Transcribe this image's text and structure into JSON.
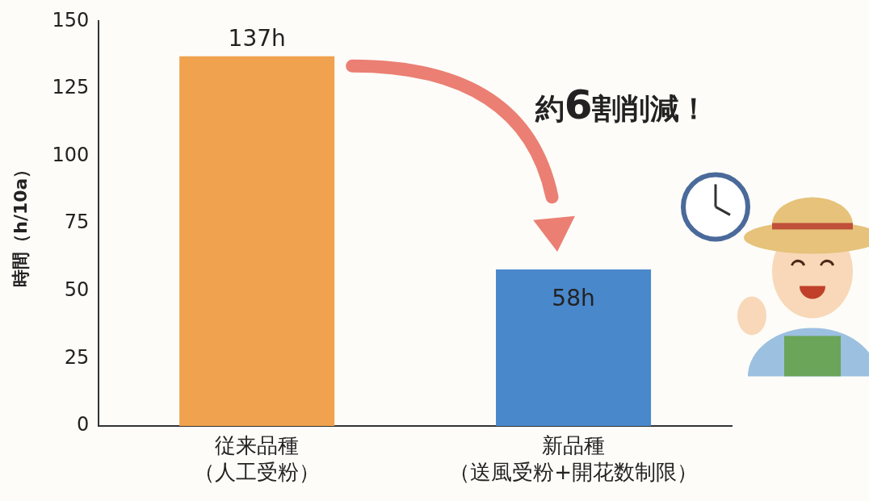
{
  "chart_data": {
    "type": "bar",
    "y_label": "時間（h/10a）",
    "categories": [
      [
        "従来品種",
        "（人工受粉）"
      ],
      [
        "新品種",
        "（送風受粉+開花数制限）"
      ]
    ],
    "values": [
      137,
      58
    ],
    "value_labels": [
      "137h",
      "58h"
    ],
    "colors": [
      "#f0a24e",
      "#4a88cc"
    ],
    "ylim": [
      0,
      150
    ],
    "yticks": [
      0,
      25,
      50,
      75,
      100,
      125,
      150
    ],
    "grid": false,
    "data_labels": true,
    "annotation": "約6割削減！"
  }
}
